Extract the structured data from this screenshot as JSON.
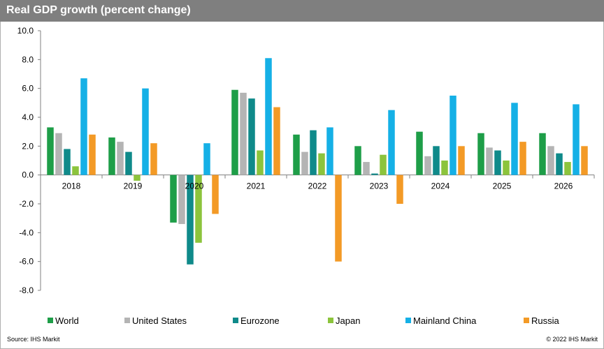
{
  "header": {
    "title": "Real GDP growth (percent change)"
  },
  "footer": {
    "source": "Source:  IHS Markit",
    "copyright": "© 2022  IHS Markit"
  },
  "chart_data": {
    "type": "bar",
    "title": "Real GDP growth (percent change)",
    "xlabel": "",
    "ylabel": "",
    "ylim": [
      -8,
      10
    ],
    "yticks": [
      "10.0",
      "8.0",
      "6.0",
      "4.0",
      "2.0",
      "0.0",
      "-2.0",
      "-4.0",
      "-6.0",
      "-8.0"
    ],
    "grid": false,
    "legend_position": "bottom",
    "categories": [
      "2018",
      "2019",
      "2020",
      "2021",
      "2022",
      "2023",
      "2024",
      "2025",
      "2026"
    ],
    "series": [
      {
        "name": "World",
        "color": "#1e9e48",
        "values": [
          3.3,
          2.6,
          -3.3,
          5.9,
          2.8,
          2.0,
          3.0,
          2.9,
          2.9
        ]
      },
      {
        "name": "United States",
        "color": "#b4b4b4",
        "values": [
          2.9,
          2.3,
          -3.4,
          5.7,
          1.6,
          0.9,
          1.3,
          1.9,
          2.0
        ]
      },
      {
        "name": "Eurozone",
        "color": "#0f8a8a",
        "values": [
          1.8,
          1.6,
          -6.2,
          5.3,
          3.1,
          0.1,
          2.0,
          1.7,
          1.5
        ]
      },
      {
        "name": "Japan",
        "color": "#8cc43c",
        "values": [
          0.6,
          -0.4,
          -4.7,
          1.7,
          1.5,
          1.4,
          1.0,
          1.0,
          0.9
        ]
      },
      {
        "name": "Mainland China",
        "color": "#15b0e6",
        "values": [
          6.7,
          6.0,
          2.2,
          8.1,
          3.3,
          4.5,
          5.5,
          5.0,
          4.9
        ]
      },
      {
        "name": "Russia",
        "color": "#f39a26",
        "values": [
          2.8,
          2.2,
          -2.7,
          4.7,
          -6.0,
          -2.0,
          2.0,
          2.3,
          2.0
        ]
      }
    ]
  }
}
